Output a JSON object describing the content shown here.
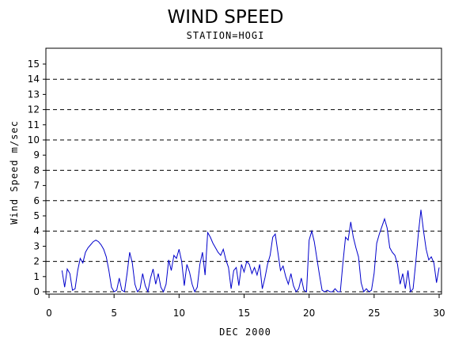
{
  "chart_data": {
    "type": "line",
    "title": "WIND SPEED",
    "subtitle": "STATION=HOGI",
    "xlabel": "DEC 2000",
    "ylabel": "Wind Speed m/sec",
    "xlim": [
      0,
      30
    ],
    "ylim": [
      0,
      15
    ],
    "x_ticks": [
      0,
      5,
      10,
      15,
      20,
      25,
      30
    ],
    "y_ticks": [
      0,
      1,
      2,
      3,
      4,
      5,
      6,
      7,
      8,
      9,
      10,
      11,
      12,
      13,
      14,
      15
    ],
    "reference_lines": [
      2,
      4,
      6,
      8,
      10,
      12,
      14
    ],
    "line_color": "#0000cc",
    "series": [
      {
        "x": [
          1.0,
          1.2,
          1.4,
          1.6,
          1.8,
          2.0,
          2.2,
          2.4,
          2.6,
          2.8,
          3.0,
          3.2,
          3.4,
          3.6,
          3.8,
          4.0,
          4.2,
          4.4,
          4.6,
          4.8,
          5.0,
          5.2,
          5.4,
          5.6,
          5.8,
          6.0,
          6.2,
          6.4,
          6.6,
          6.8,
          7.0,
          7.2,
          7.4,
          7.6,
          7.8,
          8.0,
          8.2,
          8.4,
          8.6,
          8.8,
          9.0,
          9.2,
          9.4,
          9.6,
          9.8,
          10.0,
          10.2,
          10.4,
          10.6,
          10.8,
          11.0,
          11.2,
          11.4,
          11.6,
          11.8,
          12.0,
          12.2,
          12.4,
          12.6,
          12.8,
          13.0,
          13.2,
          13.4,
          13.6,
          13.8,
          14.0,
          14.2,
          14.4,
          14.6,
          14.8,
          15.0,
          15.2,
          15.4,
          15.6,
          15.8,
          16.0,
          16.2,
          16.4,
          16.6,
          16.8,
          17.0,
          17.2,
          17.4,
          17.6,
          17.8,
          18.0,
          18.2,
          18.4,
          18.6,
          18.8,
          19.0,
          19.2,
          19.4,
          19.6,
          19.8,
          20.0,
          20.2,
          20.4,
          20.6,
          20.8,
          21.0,
          21.2,
          21.4,
          21.6,
          21.8,
          22.0,
          22.2,
          22.4,
          22.6,
          22.8,
          23.0,
          23.2,
          23.4,
          23.6,
          23.8,
          24.0,
          24.2,
          24.4,
          24.6,
          24.8,
          25.0,
          25.2,
          25.4,
          25.6,
          25.8,
          26.0,
          26.2,
          26.4,
          26.6,
          26.8,
          27.0,
          27.2,
          27.4,
          27.6,
          27.8,
          28.0,
          28.2,
          28.4,
          28.6,
          28.8,
          29.0,
          29.2,
          29.4,
          29.6,
          29.8,
          30.0
        ],
        "y": [
          1.4,
          0.3,
          1.5,
          1.2,
          0.1,
          0.2,
          1.4,
          2.2,
          1.9,
          2.6,
          2.9,
          3.1,
          3.3,
          3.4,
          3.3,
          3.1,
          2.8,
          2.3,
          1.4,
          0.3,
          0.0,
          0.1,
          0.9,
          0.1,
          0.0,
          1.2,
          2.6,
          1.9,
          0.5,
          0.0,
          0.2,
          1.2,
          0.4,
          0.0,
          0.9,
          1.5,
          0.5,
          1.2,
          0.3,
          0.0,
          0.5,
          2.1,
          1.4,
          2.4,
          2.2,
          2.8,
          2.0,
          0.4,
          1.8,
          1.3,
          0.5,
          0.0,
          0.3,
          1.8,
          2.6,
          1.1,
          3.9,
          3.6,
          3.2,
          2.9,
          2.6,
          2.4,
          2.8,
          2.1,
          1.6,
          0.2,
          1.4,
          1.6,
          0.4,
          1.8,
          1.3,
          2.0,
          1.8,
          1.2,
          1.6,
          1.1,
          1.8,
          0.2,
          0.9,
          1.8,
          2.4,
          3.6,
          3.8,
          2.6,
          1.4,
          1.7,
          1.0,
          0.5,
          1.2,
          0.4,
          0.0,
          0.2,
          0.9,
          0.1,
          0.0,
          3.4,
          4.0,
          3.3,
          2.2,
          1.1,
          0.1,
          0.0,
          0.1,
          0.0,
          0.0,
          0.2,
          0.0,
          0.0,
          1.9,
          3.6,
          3.4,
          4.6,
          3.6,
          2.9,
          2.3,
          0.6,
          0.0,
          0.2,
          0.0,
          0.1,
          1.2,
          3.2,
          3.8,
          4.3,
          4.8,
          4.2,
          2.9,
          2.6,
          2.4,
          1.8,
          0.5,
          1.2,
          0.2,
          1.4,
          0.0,
          0.2,
          1.9,
          3.8,
          5.4,
          4.0,
          2.8,
          2.1,
          2.3,
          1.9,
          0.6,
          1.6
        ]
      }
    ]
  }
}
